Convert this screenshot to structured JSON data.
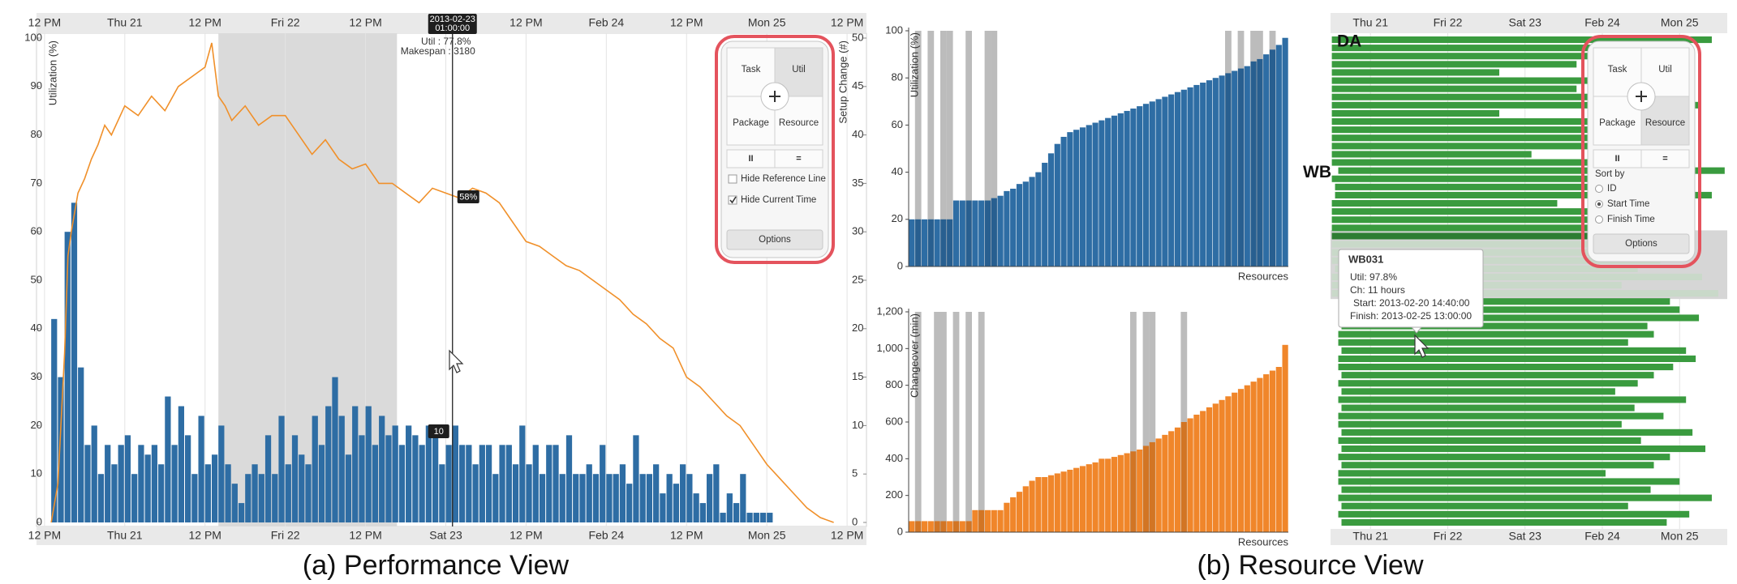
{
  "chart_data": [
    {
      "type": "bar-line",
      "ylabel": "Utilization (%)",
      "y2label": "Setup Change (#)",
      "xlim": [
        -1.2,
        122.9
      ],
      "xticks": [
        {
          "value": 0,
          "label": "12 PM"
        },
        {
          "value": 12,
          "label": "Thu 21"
        },
        {
          "value": 24,
          "label": "12 PM"
        },
        {
          "value": 36,
          "label": "Fri 22"
        },
        {
          "value": 48,
          "label": "12 PM"
        },
        {
          "value": 60,
          "label": "Sat 23"
        },
        {
          "value": 72,
          "label": "12 PM"
        },
        {
          "value": 84,
          "label": "Feb 24"
        },
        {
          "value": 96,
          "label": "12 PM"
        },
        {
          "value": 108,
          "label": "Mon 25"
        },
        {
          "value": 120,
          "label": "12 PM"
        }
      ],
      "ylim": [
        0,
        100
      ],
      "yticks": [
        0,
        10,
        20,
        30,
        40,
        50,
        60,
        70,
        80,
        90,
        100
      ],
      "y2lim": [
        0,
        50
      ],
      "y2ticks": [
        0,
        5,
        10,
        15,
        20,
        25,
        30,
        35,
        40,
        45,
        50
      ],
      "shaded_range": [
        26,
        52.7
      ],
      "current_time": 61,
      "series": [
        {
          "type": "bar",
          "axis": "y2",
          "color": "#2e6da4",
          "x": [
            1,
            2,
            3,
            4,
            5,
            6,
            7,
            8,
            9,
            10,
            11,
            12,
            13,
            14,
            15,
            16,
            17,
            18,
            19,
            20,
            21,
            22,
            23,
            24,
            25,
            26,
            27,
            28,
            29,
            30,
            31,
            32,
            33,
            34,
            35,
            36,
            37,
            38,
            39,
            40,
            41,
            42,
            43,
            44,
            45,
            46,
            47,
            48,
            49,
            50,
            51,
            52,
            53,
            54,
            55,
            56,
            57,
            58,
            59,
            60,
            61,
            62,
            63,
            64,
            65,
            66,
            67,
            68,
            69,
            70,
            71,
            72,
            73,
            74,
            75,
            76,
            77,
            78,
            79,
            80,
            81,
            82,
            83,
            84,
            85,
            86,
            87,
            88,
            89,
            90,
            91,
            92,
            93,
            94,
            95,
            96,
            97,
            98,
            99,
            100,
            101,
            102,
            103,
            104,
            105,
            106,
            107,
            108
          ],
          "values": [
            21,
            15,
            30,
            33,
            16,
            8,
            10,
            5,
            8,
            6,
            8,
            9,
            5,
            8,
            7,
            8,
            6,
            13,
            8,
            12,
            9,
            5,
            11,
            6,
            7,
            10,
            6,
            4,
            2,
            5,
            6,
            5,
            9,
            5,
            11,
            6,
            9,
            7,
            6,
            11,
            8,
            12,
            15,
            11,
            7,
            12,
            9,
            12,
            8,
            11,
            9,
            10,
            8,
            10,
            9,
            8,
            10,
            9,
            6,
            8,
            10,
            8,
            8,
            6,
            8,
            8,
            5,
            8,
            8,
            6,
            10,
            6,
            8,
            5,
            8,
            8,
            5,
            9,
            5,
            5,
            6,
            5,
            8,
            5,
            5,
            6,
            4,
            9,
            5,
            5,
            6,
            3,
            5,
            4,
            6,
            5,
            3,
            2,
            5,
            6,
            1,
            3,
            2,
            5,
            1,
            1,
            1,
            1
          ]
        },
        {
          "type": "line",
          "color": "#f0902a",
          "x": [
            1,
            2,
            3,
            3.5,
            4,
            5,
            6,
            7,
            8,
            9,
            10,
            12,
            14,
            16,
            18,
            20,
            22,
            24,
            25,
            26,
            27,
            28,
            30,
            32,
            34,
            36,
            38,
            40,
            42,
            44,
            46,
            48,
            50,
            52,
            54,
            56,
            58,
            60,
            62,
            64,
            66,
            68,
            70,
            72,
            74,
            76,
            78,
            80,
            82,
            84,
            86,
            88,
            90,
            92,
            94,
            96,
            98,
            100,
            102,
            104,
            106,
            108,
            110,
            112,
            114,
            116,
            118
          ],
          "values": [
            0,
            8,
            35,
            55,
            60,
            68,
            71,
            75,
            78,
            82,
            80,
            86,
            84,
            88,
            85,
            90,
            92,
            94,
            99,
            88,
            86,
            83,
            86,
            82,
            84,
            84,
            80,
            76,
            79,
            75,
            73,
            74,
            70,
            70,
            68,
            66,
            69,
            68,
            67,
            69,
            68,
            66,
            62,
            58,
            57,
            55,
            53,
            52,
            50,
            48,
            46,
            43,
            41,
            38,
            36,
            30,
            28,
            25,
            22,
            20,
            16,
            12,
            9,
            6,
            3,
            1,
            0
          ]
        }
      ],
      "annotations": [
        "2013-02-23",
        "01:00:00",
        "Util : 77.8%",
        "Makespan : 3180",
        "58%",
        "10"
      ]
    },
    {
      "type": "sorted-bar",
      "ylabel": "Utilization (%)",
      "xlabel": "Resources",
      "color": "#2e6da4",
      "ylim": [
        0,
        100
      ],
      "yticks": [
        0,
        20,
        40,
        60,
        80,
        100
      ],
      "values": [
        20,
        20,
        20,
        20,
        20,
        20,
        20,
        28,
        28,
        28,
        28,
        28,
        28,
        29,
        30,
        32,
        33,
        35,
        36,
        38,
        40,
        44,
        48,
        52,
        55,
        57,
        58,
        59,
        60,
        61,
        62,
        63,
        64,
        65,
        66,
        67,
        68,
        69,
        70,
        71,
        72,
        73,
        74,
        75,
        76,
        77,
        78,
        79,
        80,
        81,
        82,
        83,
        84,
        85,
        87,
        88,
        90,
        92,
        94,
        97
      ],
      "highlight": [
        1,
        3,
        5,
        6,
        9,
        12,
        13,
        50,
        52,
        54,
        55,
        57
      ]
    },
    {
      "type": "sorted-bar",
      "ylabel": "Changeover (min)",
      "xlabel": "Resources",
      "color": "#f0862a",
      "ylim": [
        0,
        1200
      ],
      "yticks": [
        0,
        200,
        400,
        600,
        800,
        {
          "value": 1000,
          "label": "1,000"
        },
        {
          "value": 1200,
          "label": "1,200"
        }
      ],
      "values": [
        60,
        60,
        60,
        60,
        60,
        60,
        60,
        60,
        60,
        60,
        120,
        120,
        120,
        120,
        120,
        160,
        190,
        220,
        250,
        280,
        300,
        300,
        310,
        320,
        330,
        340,
        350,
        360,
        370,
        380,
        400,
        400,
        410,
        420,
        430,
        440,
        450,
        470,
        490,
        510,
        530,
        550,
        570,
        600,
        620,
        640,
        660,
        680,
        700,
        720,
        740,
        760,
        780,
        800,
        820,
        840,
        860,
        880,
        900,
        1020
      ],
      "highlight": [
        1,
        4,
        5,
        7,
        9,
        11,
        35,
        37,
        38,
        43
      ]
    },
    {
      "type": "gantt",
      "color": "#3a9b3f",
      "xlim": [
        -0.4,
        122.8
      ],
      "xticks": [
        {
          "value": 12,
          "label": "Thu 21"
        },
        {
          "value": 36,
          "label": "Fri 22"
        },
        {
          "value": 60,
          "label": "Sat 23"
        },
        {
          "value": 84,
          "label": "Feb 24"
        },
        {
          "value": 108,
          "label": "Mon 25"
        }
      ],
      "starts": [
        0,
        0,
        0,
        0,
        0,
        0,
        0,
        0,
        0,
        0,
        0,
        0,
        0,
        0,
        0,
        0,
        2,
        0,
        1,
        1,
        0,
        0,
        0,
        0,
        0,
        0,
        0,
        0,
        1,
        0,
        0,
        0,
        3,
        2,
        2,
        3,
        2,
        2,
        3,
        2,
        2,
        3,
        2,
        3,
        2,
        3,
        2,
        2,
        3,
        2,
        3,
        2,
        3,
        2,
        2,
        3,
        2,
        3,
        2,
        3
      ],
      "ends": [
        118,
        97,
        90,
        76,
        52,
        90,
        76,
        83,
        114,
        52,
        83,
        104,
        94,
        110,
        62,
        100,
        122,
        84,
        105,
        118,
        70,
        98,
        108,
        88,
        112,
        93,
        80,
        102,
        95,
        115,
        90,
        120,
        105,
        108,
        114,
        98,
        100,
        92,
        110,
        113,
        106,
        100,
        95,
        88,
        110,
        94,
        103,
        90,
        112,
        96,
        116,
        105,
        100,
        85,
        108,
        99,
        118,
        92,
        111,
        104
      ],
      "groups": [
        {
          "label": "DA",
          "row": 0
        },
        {
          "label": "WB",
          "row": 16
        }
      ],
      "highlight_rows": [
        24,
        31
      ],
      "tooltip": {
        "title": "WB031",
        "lines": [
          "Util: 97.8%",
          "Ch: 11 hours",
          "Start: 2013-02-20 14:40:00",
          "Finish: 2013-02-25 13:00:00"
        ]
      }
    }
  ],
  "controls": [
    {
      "buttons": [
        "Task",
        "Util",
        "Package",
        "Resource"
      ],
      "selected": 1,
      "toggles": [
        "II",
        "="
      ],
      "kind": "checkbox",
      "options": [
        {
          "label": "Hide Reference Line",
          "checked": false
        },
        {
          "label": "Hide Current Time",
          "checked": true
        }
      ],
      "footer": "Options"
    },
    {
      "buttons": [
        "Task",
        "Util",
        "Package",
        "Resource"
      ],
      "selected": 3,
      "toggles": [
        "II",
        "="
      ],
      "kind": "radio",
      "heading": "Sort by",
      "options": [
        {
          "label": "ID",
          "checked": false
        },
        {
          "label": "Start Time",
          "checked": true
        },
        {
          "label": "Finish Time",
          "checked": false
        }
      ],
      "footer": "Options"
    }
  ],
  "captions": [
    "(a) Performance View",
    "(b) Resource View"
  ]
}
